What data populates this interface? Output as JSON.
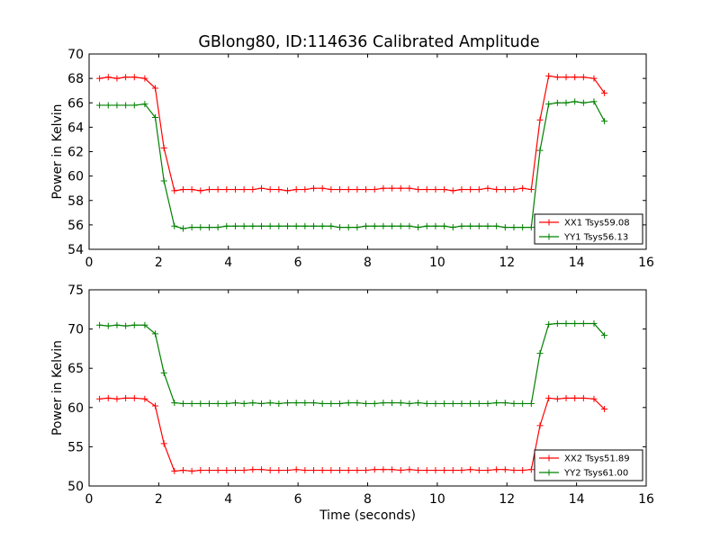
{
  "title": "GBlong80, ID:114636 Calibrated Amplitude",
  "chart_data": [
    {
      "type": "line",
      "title": "GBlong80, ID:114636 Calibrated Amplitude",
      "xlabel": "",
      "ylabel": "Power in Kelvin",
      "xlim": [
        0,
        16
      ],
      "ylim": [
        54,
        70
      ],
      "xticks": [
        "0",
        "2",
        "4",
        "6",
        "8",
        "10",
        "12",
        "14",
        "16"
      ],
      "yticks": [
        "54",
        "56",
        "58",
        "60",
        "62",
        "64",
        "66",
        "68",
        "70"
      ],
      "legend_position": "lower-right",
      "grid": false,
      "x": [
        0.3,
        0.55,
        0.8,
        1.05,
        1.3,
        1.6,
        1.9,
        2.15,
        2.45,
        2.7,
        2.95,
        3.2,
        3.45,
        3.7,
        3.95,
        4.2,
        4.45,
        4.7,
        4.95,
        5.2,
        5.45,
        5.7,
        5.95,
        6.2,
        6.45,
        6.7,
        6.95,
        7.2,
        7.45,
        7.7,
        7.95,
        8.2,
        8.45,
        8.7,
        8.95,
        9.2,
        9.45,
        9.7,
        9.95,
        10.2,
        10.45,
        10.7,
        10.95,
        11.2,
        11.45,
        11.7,
        11.95,
        12.2,
        12.45,
        12.7,
        12.95,
        13.2,
        13.45,
        13.7,
        13.95,
        14.2,
        14.5,
        14.8
      ],
      "series": [
        {
          "name": "XX1 Tsys59.08",
          "color": "#ff0000",
          "values": [
            68.0,
            68.1,
            68.0,
            68.1,
            68.1,
            68.0,
            67.2,
            62.3,
            58.8,
            58.9,
            58.9,
            58.8,
            58.9,
            58.9,
            58.9,
            58.9,
            58.9,
            58.9,
            59.0,
            58.9,
            58.9,
            58.8,
            58.9,
            58.9,
            59.0,
            59.0,
            58.9,
            58.9,
            58.9,
            58.9,
            58.9,
            58.9,
            59.0,
            59.0,
            59.0,
            59.0,
            58.9,
            58.9,
            58.9,
            58.9,
            58.8,
            58.9,
            58.9,
            58.9,
            59.0,
            58.9,
            58.9,
            58.9,
            59.0,
            58.9,
            64.6,
            68.2,
            68.1,
            68.1,
            68.1,
            68.1,
            68.0,
            66.8
          ]
        },
        {
          "name": "YY1 Tsys56.13",
          "color": "#008000",
          "values": [
            65.8,
            65.8,
            65.8,
            65.8,
            65.8,
            65.9,
            64.8,
            59.6,
            55.9,
            55.7,
            55.8,
            55.8,
            55.8,
            55.8,
            55.9,
            55.9,
            55.9,
            55.9,
            55.9,
            55.9,
            55.9,
            55.9,
            55.9,
            55.9,
            55.9,
            55.9,
            55.9,
            55.8,
            55.8,
            55.8,
            55.9,
            55.9,
            55.9,
            55.9,
            55.9,
            55.9,
            55.8,
            55.9,
            55.9,
            55.9,
            55.8,
            55.9,
            55.9,
            55.9,
            55.9,
            55.9,
            55.8,
            55.8,
            55.8,
            55.8,
            62.1,
            65.9,
            66.0,
            66.0,
            66.1,
            66.0,
            66.1,
            64.5
          ]
        }
      ]
    },
    {
      "type": "line",
      "title": "",
      "xlabel": "Time (seconds)",
      "ylabel": "Power in Kelvin",
      "xlim": [
        0,
        16
      ],
      "ylim": [
        50,
        75
      ],
      "xticks": [
        "0",
        "2",
        "4",
        "6",
        "8",
        "10",
        "12",
        "14",
        "16"
      ],
      "yticks": [
        "50",
        "55",
        "60",
        "65",
        "70",
        "75"
      ],
      "legend_position": "lower-right",
      "grid": false,
      "x": [
        0.3,
        0.55,
        0.8,
        1.05,
        1.3,
        1.6,
        1.9,
        2.15,
        2.45,
        2.7,
        2.95,
        3.2,
        3.45,
        3.7,
        3.95,
        4.2,
        4.45,
        4.7,
        4.95,
        5.2,
        5.45,
        5.7,
        5.95,
        6.2,
        6.45,
        6.7,
        6.95,
        7.2,
        7.45,
        7.7,
        7.95,
        8.2,
        8.45,
        8.7,
        8.95,
        9.2,
        9.45,
        9.7,
        9.95,
        10.2,
        10.45,
        10.7,
        10.95,
        11.2,
        11.45,
        11.7,
        11.95,
        12.2,
        12.45,
        12.7,
        12.95,
        13.2,
        13.45,
        13.7,
        13.95,
        14.2,
        14.5,
        14.8
      ],
      "series": [
        {
          "name": "XX2 Tsys51.89",
          "color": "#ff0000",
          "values": [
            61.1,
            61.2,
            61.1,
            61.2,
            61.2,
            61.1,
            60.2,
            55.4,
            51.9,
            52.0,
            51.9,
            52.0,
            52.0,
            52.0,
            52.0,
            52.0,
            52.0,
            52.1,
            52.1,
            52.0,
            52.0,
            52.0,
            52.1,
            52.0,
            52.0,
            52.0,
            52.0,
            52.0,
            52.0,
            52.0,
            52.0,
            52.1,
            52.1,
            52.1,
            52.0,
            52.1,
            52.0,
            52.0,
            52.0,
            52.0,
            52.0,
            52.0,
            52.1,
            52.0,
            52.0,
            52.1,
            52.1,
            52.0,
            52.0,
            52.1,
            57.7,
            61.2,
            61.1,
            61.2,
            61.2,
            61.2,
            61.1,
            59.8
          ]
        },
        {
          "name": "YY2 Tsys61.00",
          "color": "#008000",
          "values": [
            70.5,
            70.4,
            70.5,
            70.4,
            70.5,
            70.5,
            69.4,
            64.4,
            60.6,
            60.5,
            60.5,
            60.5,
            60.5,
            60.5,
            60.5,
            60.6,
            60.5,
            60.6,
            60.5,
            60.6,
            60.5,
            60.6,
            60.6,
            60.6,
            60.6,
            60.5,
            60.5,
            60.5,
            60.6,
            60.6,
            60.5,
            60.5,
            60.6,
            60.6,
            60.6,
            60.5,
            60.6,
            60.5,
            60.5,
            60.5,
            60.5,
            60.5,
            60.5,
            60.5,
            60.5,
            60.6,
            60.6,
            60.5,
            60.5,
            60.5,
            66.9,
            70.6,
            70.7,
            70.7,
            70.7,
            70.7,
            70.7,
            69.2
          ]
        }
      ]
    }
  ]
}
